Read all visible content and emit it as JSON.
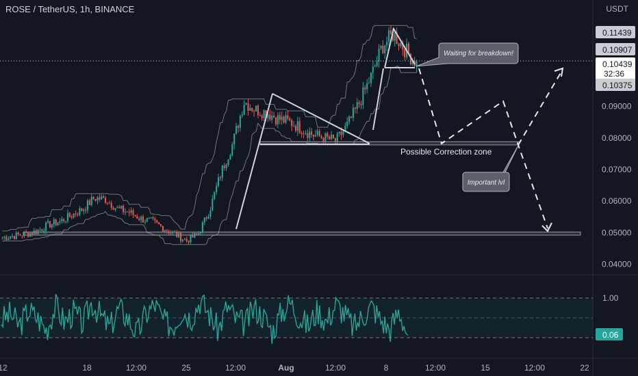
{
  "header": {
    "title": "ROSE / TetherUS, 1h, BINANCE",
    "unit": "USDT"
  },
  "chart_data": {
    "type": "candlestick",
    "price_axis": {
      "ticks": [
        "0.04000",
        "0.05000",
        "0.06000",
        "0.07000",
        "0.08000",
        "0.09000"
      ],
      "tick_values": [
        0.04,
        0.05,
        0.06,
        0.07,
        0.08,
        0.09
      ],
      "ylim": [
        0.0375,
        0.1185
      ]
    },
    "price_tags": [
      {
        "label": "0.11439",
        "value": 0.11439,
        "style": "grey"
      },
      {
        "label": "0.10907",
        "value": 0.10907,
        "style": "grey"
      },
      {
        "label": "0.10439",
        "value": 0.10439,
        "style": "current",
        "countdown": "32:36"
      },
      {
        "label": "0.10375",
        "value": 0.10375,
        "style": "grey"
      }
    ],
    "time_axis": [
      "12",
      "18",
      "12:00",
      "25",
      "12:00",
      "Aug",
      "12:00",
      "8",
      "12:00",
      "15",
      "12:00",
      "22"
    ],
    "support_zones": [
      {
        "from": 0.0492,
        "to": 0.0502
      },
      {
        "from": 0.0778,
        "to": 0.0788
      }
    ],
    "annotations": {
      "callout_breakdown": "Waiting for breakdown!",
      "callout_level": "Important lvl",
      "zone_label": "Possible Correction zone"
    },
    "price_path": [
      [
        0.049,
        0.048
      ],
      [
        0.0495,
        0.0485
      ],
      [
        0.05,
        0.049
      ],
      [
        0.051,
        0.05
      ],
      [
        0.053,
        0.052
      ],
      [
        0.054,
        0.053
      ],
      [
        0.056,
        0.055
      ],
      [
        0.058,
        0.057
      ],
      [
        0.062,
        0.06
      ],
      [
        0.061,
        0.06
      ],
      [
        0.058,
        0.057
      ],
      [
        0.057,
        0.056
      ],
      [
        0.055,
        0.054
      ],
      [
        0.054,
        0.053
      ],
      [
        0.052,
        0.051
      ],
      [
        0.05,
        0.049
      ],
      [
        0.048,
        0.047
      ],
      [
        0.05,
        0.049
      ],
      [
        0.058,
        0.056
      ],
      [
        0.07,
        0.068
      ],
      [
        0.079,
        0.077
      ],
      [
        0.093,
        0.09
      ],
      [
        0.09,
        0.088
      ],
      [
        0.089,
        0.087
      ],
      [
        0.087,
        0.085
      ],
      [
        0.086,
        0.084
      ],
      [
        0.084,
        0.082
      ],
      [
        0.082,
        0.08
      ],
      [
        0.081,
        0.079
      ],
      [
        0.08,
        0.078
      ],
      [
        0.085,
        0.083
      ],
      [
        0.092,
        0.09
      ],
      [
        0.1,
        0.098
      ],
      [
        0.11,
        0.108
      ],
      [
        0.114,
        0.112
      ],
      [
        0.109,
        0.107
      ],
      [
        0.104,
        0.103
      ]
    ],
    "oscillator": {
      "levels": [
        "1.00"
      ],
      "current": "0.06",
      "values": [
        0.45,
        0.6,
        0.3,
        0.7,
        0.5,
        0.2,
        0.8,
        0.4,
        0.65,
        0.35,
        0.9,
        0.55,
        0.25,
        0.75,
        0.5,
        0.1,
        0.6,
        0.85,
        0.4,
        0.3,
        0.7,
        0.5,
        0.95,
        0.6,
        0.2,
        0.8,
        0.45,
        0.35,
        0.75,
        0.55,
        0.15,
        0.65,
        0.9,
        0.5,
        0.3,
        0.7,
        0.4,
        0.85,
        0.6,
        0.25,
        0.55,
        0.8,
        0.45,
        0.2,
        0.7,
        0.06
      ]
    }
  }
}
